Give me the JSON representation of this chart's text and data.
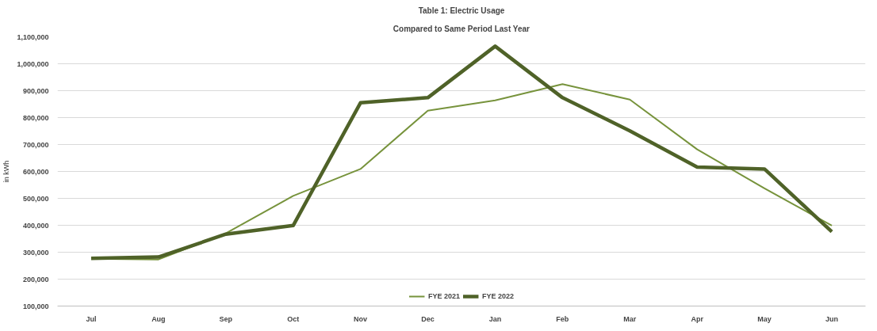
{
  "chart_data": {
    "type": "line",
    "title": "Table 1: Electric Usage",
    "subtitle": "Compared to Same Period Last Year",
    "ylabel": "in kWh",
    "categories": [
      "Jul",
      "Aug",
      "Sep",
      "Oct",
      "Nov",
      "Dec",
      "Jan",
      "Feb",
      "Mar",
      "Apr",
      "May",
      "Jun"
    ],
    "series": [
      {
        "name": "FYE 2021",
        "color": "#77933c",
        "values": [
          276000,
          273000,
          370000,
          509000,
          609000,
          826000,
          864000,
          924000,
          867000,
          682000,
          537000,
          399000
        ]
      },
      {
        "name": "FYE 2022",
        "color": "#4f6228",
        "values": [
          277000,
          282000,
          367000,
          399000,
          855000,
          874000,
          1065000,
          874000,
          751000,
          616000,
          609000,
          376000
        ]
      }
    ],
    "ylim": [
      100000,
      1100000
    ],
    "yticks": [
      {
        "value": 100000,
        "label": "100,000"
      },
      {
        "value": 200000,
        "label": "200,000"
      },
      {
        "value": 300000,
        "label": "300,000"
      },
      {
        "value": 400000,
        "label": "400,000"
      },
      {
        "value": 500000,
        "label": "500,000"
      },
      {
        "value": 600000,
        "label": "600,000"
      },
      {
        "value": 700000,
        "label": "700,000"
      },
      {
        "value": 800000,
        "label": "800,000"
      },
      {
        "value": 900000,
        "label": "900,000"
      },
      {
        "value": 1000000,
        "label": "1,000,000"
      },
      {
        "value": 1100000,
        "label": "1,100,000"
      }
    ],
    "grid": "y",
    "legend": "bottom",
    "marker": "none",
    "line_style": "solid"
  }
}
